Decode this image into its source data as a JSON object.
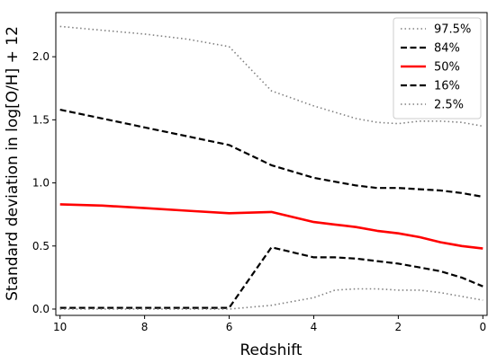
{
  "chart_data": {
    "type": "line",
    "title": "",
    "xlabel": "Redshift",
    "ylabel": "Standard deviation in log[O/H] + 12",
    "xlim": [
      10.1,
      -0.1
    ],
    "ylim": [
      -0.05,
      2.35
    ],
    "x_reversed": true,
    "grid": false,
    "legend_position": "top-right",
    "xticks": [
      10,
      8,
      6,
      4,
      2,
      0
    ],
    "yticks": [
      0.0,
      0.5,
      1.0,
      1.5,
      2.0
    ],
    "ytick_labels": [
      "0.0",
      "0.5",
      "1.0",
      "1.5",
      "2.0"
    ],
    "x": [
      10,
      9,
      8,
      7,
      6,
      5,
      4,
      3.5,
      3,
      2.5,
      2,
      1.5,
      1,
      0.5,
      0
    ],
    "series": [
      {
        "name": "97.5%",
        "color": "#808080",
        "style": "dotted",
        "values": [
          2.24,
          2.21,
          2.18,
          2.14,
          2.08,
          1.73,
          1.61,
          1.56,
          1.51,
          1.48,
          1.47,
          1.49,
          1.49,
          1.48,
          1.45
        ]
      },
      {
        "name": "84%",
        "color": "#000000",
        "style": "dashed",
        "values": [
          1.58,
          1.51,
          1.44,
          1.37,
          1.3,
          1.14,
          1.04,
          1.01,
          0.98,
          0.96,
          0.96,
          0.95,
          0.94,
          0.92,
          0.89
        ]
      },
      {
        "name": "50%",
        "color": "#ff0000",
        "style": "solid",
        "values": [
          0.83,
          0.82,
          0.8,
          0.78,
          0.76,
          0.77,
          0.69,
          0.67,
          0.65,
          0.62,
          0.6,
          0.57,
          0.53,
          0.5,
          0.48
        ]
      },
      {
        "name": "16%",
        "color": "#000000",
        "style": "dashed",
        "values": [
          0.01,
          0.01,
          0.01,
          0.01,
          0.01,
          0.49,
          0.41,
          0.41,
          0.4,
          0.38,
          0.36,
          0.33,
          0.3,
          0.25,
          0.18
        ]
      },
      {
        "name": "2.5%",
        "color": "#808080",
        "style": "dotted",
        "values": [
          0.0,
          0.0,
          0.0,
          0.0,
          0.0,
          0.03,
          0.09,
          0.15,
          0.16,
          0.16,
          0.15,
          0.15,
          0.13,
          0.1,
          0.07
        ]
      }
    ]
  }
}
